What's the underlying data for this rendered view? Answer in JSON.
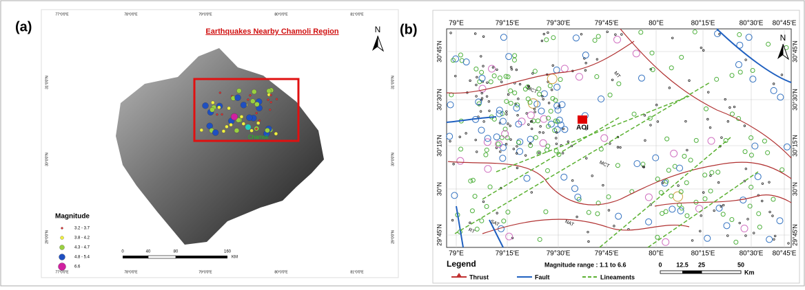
{
  "panel_a": {
    "label": "(a)",
    "title": "Earthquakes Nearby Chamoli Region",
    "north": "N",
    "top_axis": [
      "77°0'0\"E",
      "78°0'0\"E",
      "79°0'0\"E",
      "80°0'0\"E",
      "81°0'0\"E"
    ],
    "bottom_axis": [
      "77°0'0\"E",
      "78°0'0\"E",
      "79°0'0\"E",
      "80°0'0\"E",
      "81°0'0\"E"
    ],
    "left_axis": [
      "31°0'0\"N",
      "30°0'0\"N",
      "29°0'0\"N"
    ],
    "right_axis": [
      "31°0'0\"N",
      "30°0'0\"N",
      "29°0'0\"N"
    ],
    "place": "Chamoli",
    "legend": {
      "title": "Magnitude",
      "items": [
        "3.2 - 3.7",
        "3.8 - 4.2",
        "4.3 - 4.7",
        "4.8 - 5.4",
        "6.6"
      ]
    },
    "scale": {
      "ticks": [
        "0",
        "40",
        "80",
        "160"
      ],
      "unit": "KM"
    }
  },
  "panel_b": {
    "label": "(b)",
    "north": "N",
    "top_axis": [
      "79°E",
      "79°15'E",
      "79°30'E",
      "79°45'E",
      "80°E",
      "80°15'E",
      "80°30'E",
      "80°45'E"
    ],
    "bottom_axis": [
      "79°E",
      "79°15'E",
      "79°30'E",
      "79°45'E",
      "80°E",
      "80°15'E",
      "80°30'E",
      "80°45'E"
    ],
    "left_axis": [
      "30°45'N",
      "30°30'N",
      "30°15'N",
      "30°N",
      "29°45'N"
    ],
    "right_axis": [
      "30°45'N",
      "30°30'N",
      "30°15'N",
      "30°N",
      "29°45'N"
    ],
    "aoi": "AOI",
    "structures": [
      "MCT",
      "MT",
      "MCT",
      "NAT",
      "SAT",
      "RT"
    ],
    "legend": {
      "title": "Legend",
      "magnitude_range": "Magnitude range : 1.1 to 6.6",
      "items": [
        "Thrust",
        "Fault",
        "Lineaments"
      ]
    },
    "scale": {
      "ticks": [
        "0",
        "12.5",
        "25",
        "50"
      ],
      "unit": "Km"
    }
  }
}
